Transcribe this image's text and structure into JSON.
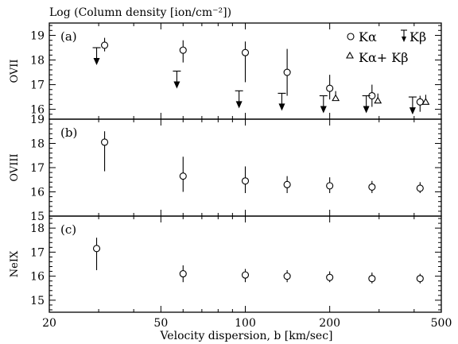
{
  "chart_data": {
    "type": "scatter",
    "title": "Log (Column density [ion/cm⁻²])",
    "xlabel": "Velocity dispersion, b [km/sec]",
    "x_scale": "log",
    "xlim": [
      20,
      500
    ],
    "x_ticks": [
      20,
      50,
      100,
      200,
      500
    ],
    "legend": {
      "placement": "top-right",
      "entries": [
        {
          "symbol": "circle",
          "label": "Kα"
        },
        {
          "symbol": "arrow",
          "label": "Kβ"
        },
        {
          "symbol": "triangle",
          "label": "Kα+ Kβ"
        }
      ]
    },
    "panels": [
      {
        "label": "(a)",
        "ylabel": "OVII",
        "ylim": [
          15.6,
          19.5
        ],
        "y_ticks": [
          16,
          17,
          18,
          19
        ],
        "series": [
          {
            "symbol": "circle",
            "points": [
              {
                "x": 31.5,
                "y": 18.6,
                "lo": 18.35,
                "hi": 18.9
              },
              {
                "x": 60,
                "y": 18.4,
                "lo": 17.9,
                "hi": 18.8
              },
              {
                "x": 100,
                "y": 18.3,
                "lo": 17.1,
                "hi": 18.75
              },
              {
                "x": 141,
                "y": 17.5,
                "lo": 16.55,
                "hi": 18.45
              },
              {
                "x": 200,
                "y": 16.85,
                "lo": 16.4,
                "hi": 17.4
              },
              {
                "x": 283,
                "y": 16.55,
                "lo": 16.1,
                "hi": 17.0
              },
              {
                "x": 420,
                "y": 16.3,
                "lo": 15.9,
                "hi": 16.55
              }
            ]
          },
          {
            "symbol": "arrow",
            "points": [
              {
                "x": 29.5,
                "y": 18.5
              },
              {
                "x": 57,
                "y": 17.55
              },
              {
                "x": 95,
                "y": 16.75
              },
              {
                "x": 135,
                "y": 16.65
              },
              {
                "x": 190,
                "y": 16.55
              },
              {
                "x": 270,
                "y": 16.55
              },
              {
                "x": 395,
                "y": 16.5
              }
            ]
          },
          {
            "symbol": "triangle",
            "points": [
              {
                "x": 210,
                "y": 16.45
              },
              {
                "x": 297,
                "y": 16.35
              },
              {
                "x": 440,
                "y": 16.3
              }
            ]
          }
        ]
      },
      {
        "label": "(b)",
        "ylabel": "OVIII",
        "ylim": [
          15,
          19
        ],
        "y_ticks": [
          15,
          16,
          17,
          18,
          19
        ],
        "series": [
          {
            "symbol": "circle",
            "points": [
              {
                "x": 31.5,
                "y": 18.05,
                "lo": 16.85,
                "hi": 18.5
              },
              {
                "x": 60,
                "y": 16.65,
                "lo": 16.0,
                "hi": 17.45
              },
              {
                "x": 100,
                "y": 16.45,
                "lo": 15.95,
                "hi": 17.05
              },
              {
                "x": 141,
                "y": 16.3,
                "lo": 15.95,
                "hi": 16.65
              },
              {
                "x": 200,
                "y": 16.25,
                "lo": 15.95,
                "hi": 16.6
              },
              {
                "x": 283,
                "y": 16.2,
                "lo": 15.95,
                "hi": 16.45
              },
              {
                "x": 420,
                "y": 16.15,
                "lo": 15.95,
                "hi": 16.4
              }
            ]
          }
        ]
      },
      {
        "label": "(c)",
        "ylabel": "NeIX",
        "ylim": [
          14.5,
          18.5
        ],
        "y_ticks": [
          15,
          16,
          17,
          18
        ],
        "series": [
          {
            "symbol": "circle",
            "points": [
              {
                "x": 29.5,
                "y": 17.15,
                "lo": 16.25,
                "hi": 17.6
              },
              {
                "x": 60,
                "y": 16.1,
                "lo": 15.75,
                "hi": 16.45
              },
              {
                "x": 100,
                "y": 16.05,
                "lo": 15.75,
                "hi": 16.3
              },
              {
                "x": 141,
                "y": 16.0,
                "lo": 15.75,
                "hi": 16.25
              },
              {
                "x": 200,
                "y": 15.95,
                "lo": 15.75,
                "hi": 16.2
              },
              {
                "x": 283,
                "y": 15.9,
                "lo": 15.7,
                "hi": 16.15
              },
              {
                "x": 420,
                "y": 15.9,
                "lo": 15.7,
                "hi": 16.1
              }
            ]
          }
        ]
      }
    ]
  }
}
